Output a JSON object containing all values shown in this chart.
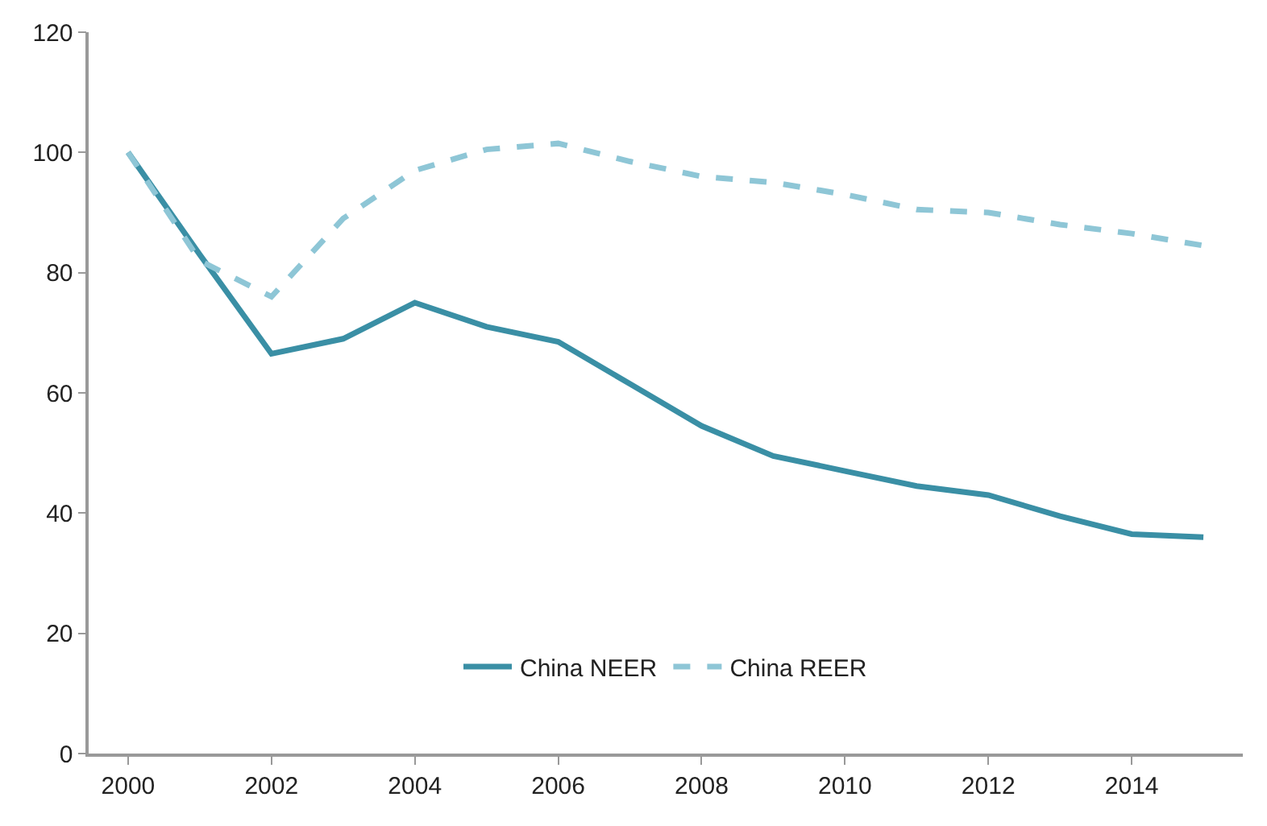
{
  "chart_data": {
    "type": "line",
    "categories": [
      "2000",
      null,
      "2002",
      null,
      "2004",
      null,
      "2006",
      null,
      "2008",
      null,
      "2010",
      null,
      "2012",
      null,
      "2014",
      null
    ],
    "series": [
      {
        "name": "China NEER",
        "color": "#3a8fa5",
        "line_style": "solid",
        "values": [
          100,
          83,
          66.5,
          69,
          75,
          71,
          68.5,
          61.5,
          54.5,
          49.5,
          47,
          44.5,
          43,
          39.5,
          36.5,
          36
        ]
      },
      {
        "name": "China REER",
        "color": "#8ec6d6",
        "line_style": "dashed",
        "values": [
          100,
          82,
          76,
          89,
          97,
          100.5,
          101.5,
          98.5,
          96,
          95,
          93,
          90.5,
          90,
          88,
          86.5,
          84.5
        ]
      }
    ],
    "ylim": [
      0,
      120
    ],
    "yticks": [
      0,
      20,
      40,
      60,
      80,
      100,
      120
    ],
    "legend": "bottom",
    "marker": "none"
  }
}
